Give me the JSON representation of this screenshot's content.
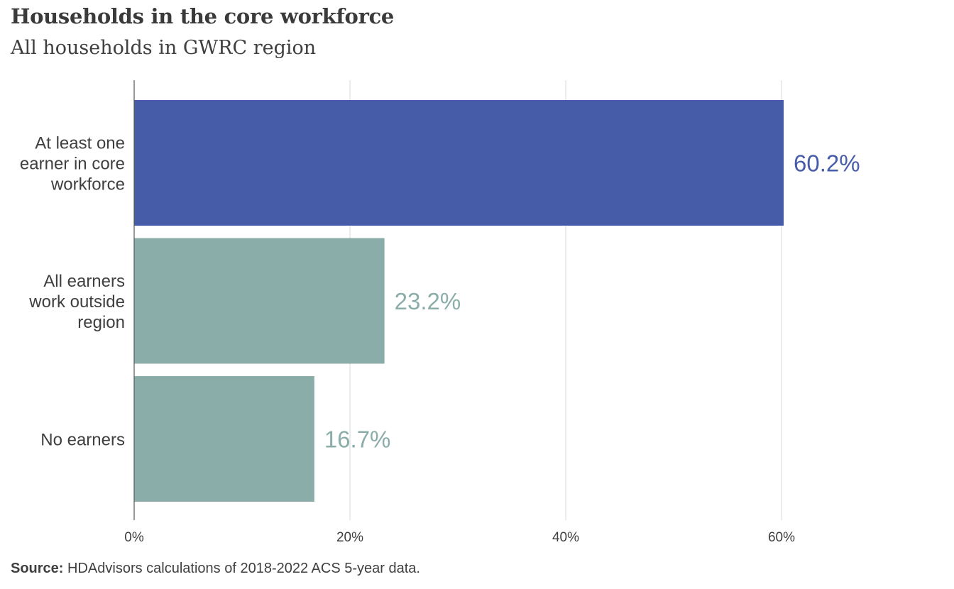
{
  "header": {
    "title": "Households in the core workforce",
    "subtitle": "All households in GWRC region"
  },
  "footer": {
    "source_label": "Source:",
    "source_text": "HDAdvisors  calculations of 2018-2022  ACS 5-year  data."
  },
  "colors": {
    "primary_bar": "#465ca8",
    "secondary_bar": "#8badaa",
    "gridline": "#d9d9d9",
    "axis": "#555555",
    "text": "#3f3f3f"
  },
  "chart_data": {
    "type": "bar",
    "orientation": "horizontal",
    "title": "Households in the core workforce",
    "subtitle": "All households in GWRC region",
    "categories": [
      [
        "At least one",
        "earner in core",
        "workforce"
      ],
      [
        "All earners",
        "work outside",
        "region"
      ],
      [
        "No earners"
      ]
    ],
    "values": [
      60.2,
      23.2,
      16.7
    ],
    "value_labels": [
      "60.2%",
      "23.2%",
      "16.7%"
    ],
    "bar_colors": [
      "#465ca8",
      "#8badaa",
      "#8badaa"
    ],
    "xlim": [
      0,
      75
    ],
    "xticks": [
      0,
      20,
      40,
      60
    ],
    "xtick_labels": [
      "0%",
      "20%",
      "40%",
      "60%"
    ],
    "grid": true,
    "legend": "none"
  }
}
